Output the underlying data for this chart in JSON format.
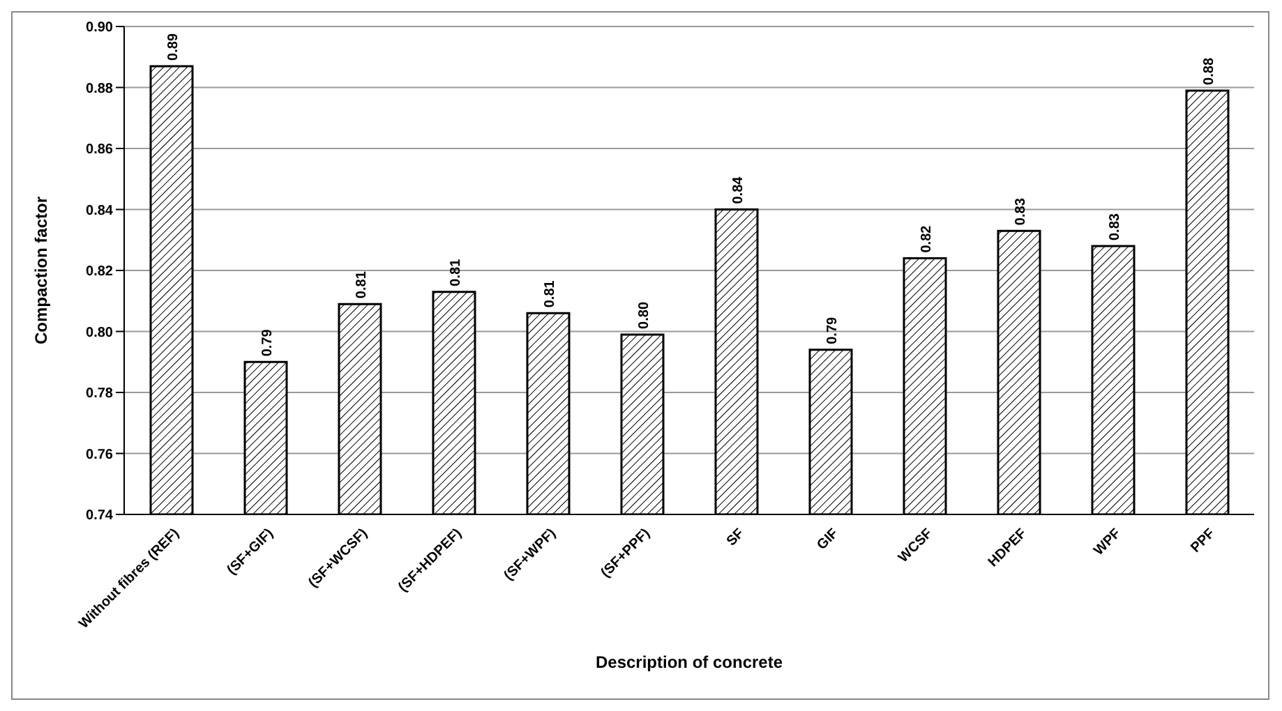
{
  "chart_data": {
    "type": "bar",
    "xlabel": "Description of concrete",
    "ylabel": "Compaction factor",
    "categories": [
      "Without fibres (REF)",
      "(SF+GIF)",
      "(SF+WCSF)",
      "(SF+HDPEF)",
      "(SF+WPF)",
      "(SF+PPF)",
      "SF",
      "GIF",
      "WCSF",
      "HDPEF",
      "WPF",
      "PPF"
    ],
    "values": [
      0.887,
      0.79,
      0.809,
      0.813,
      0.806,
      0.799,
      0.84,
      0.794,
      0.824,
      0.833,
      0.828,
      0.879
    ],
    "value_labels": [
      "0.89",
      "0.79",
      "0.81",
      "0.81",
      "0.81",
      "0.80",
      "0.84",
      "0.79",
      "0.82",
      "0.83",
      "0.83",
      "0.88"
    ],
    "color": "#000000",
    "ylim": [
      0.74,
      0.9
    ],
    "yticks": [
      {
        "value": 0.74,
        "label": "0.74"
      },
      {
        "value": 0.76,
        "label": "0.76"
      },
      {
        "value": 0.78,
        "label": "0.78"
      },
      {
        "value": 0.8,
        "label": "0.80"
      },
      {
        "value": 0.82,
        "label": "0.82"
      },
      {
        "value": 0.84,
        "label": "0.84"
      },
      {
        "value": 0.86,
        "label": "0.86"
      },
      {
        "value": 0.88,
        "label": "0.88"
      },
      {
        "value": 0.9,
        "label": "0.90"
      }
    ],
    "grid": "y"
  }
}
